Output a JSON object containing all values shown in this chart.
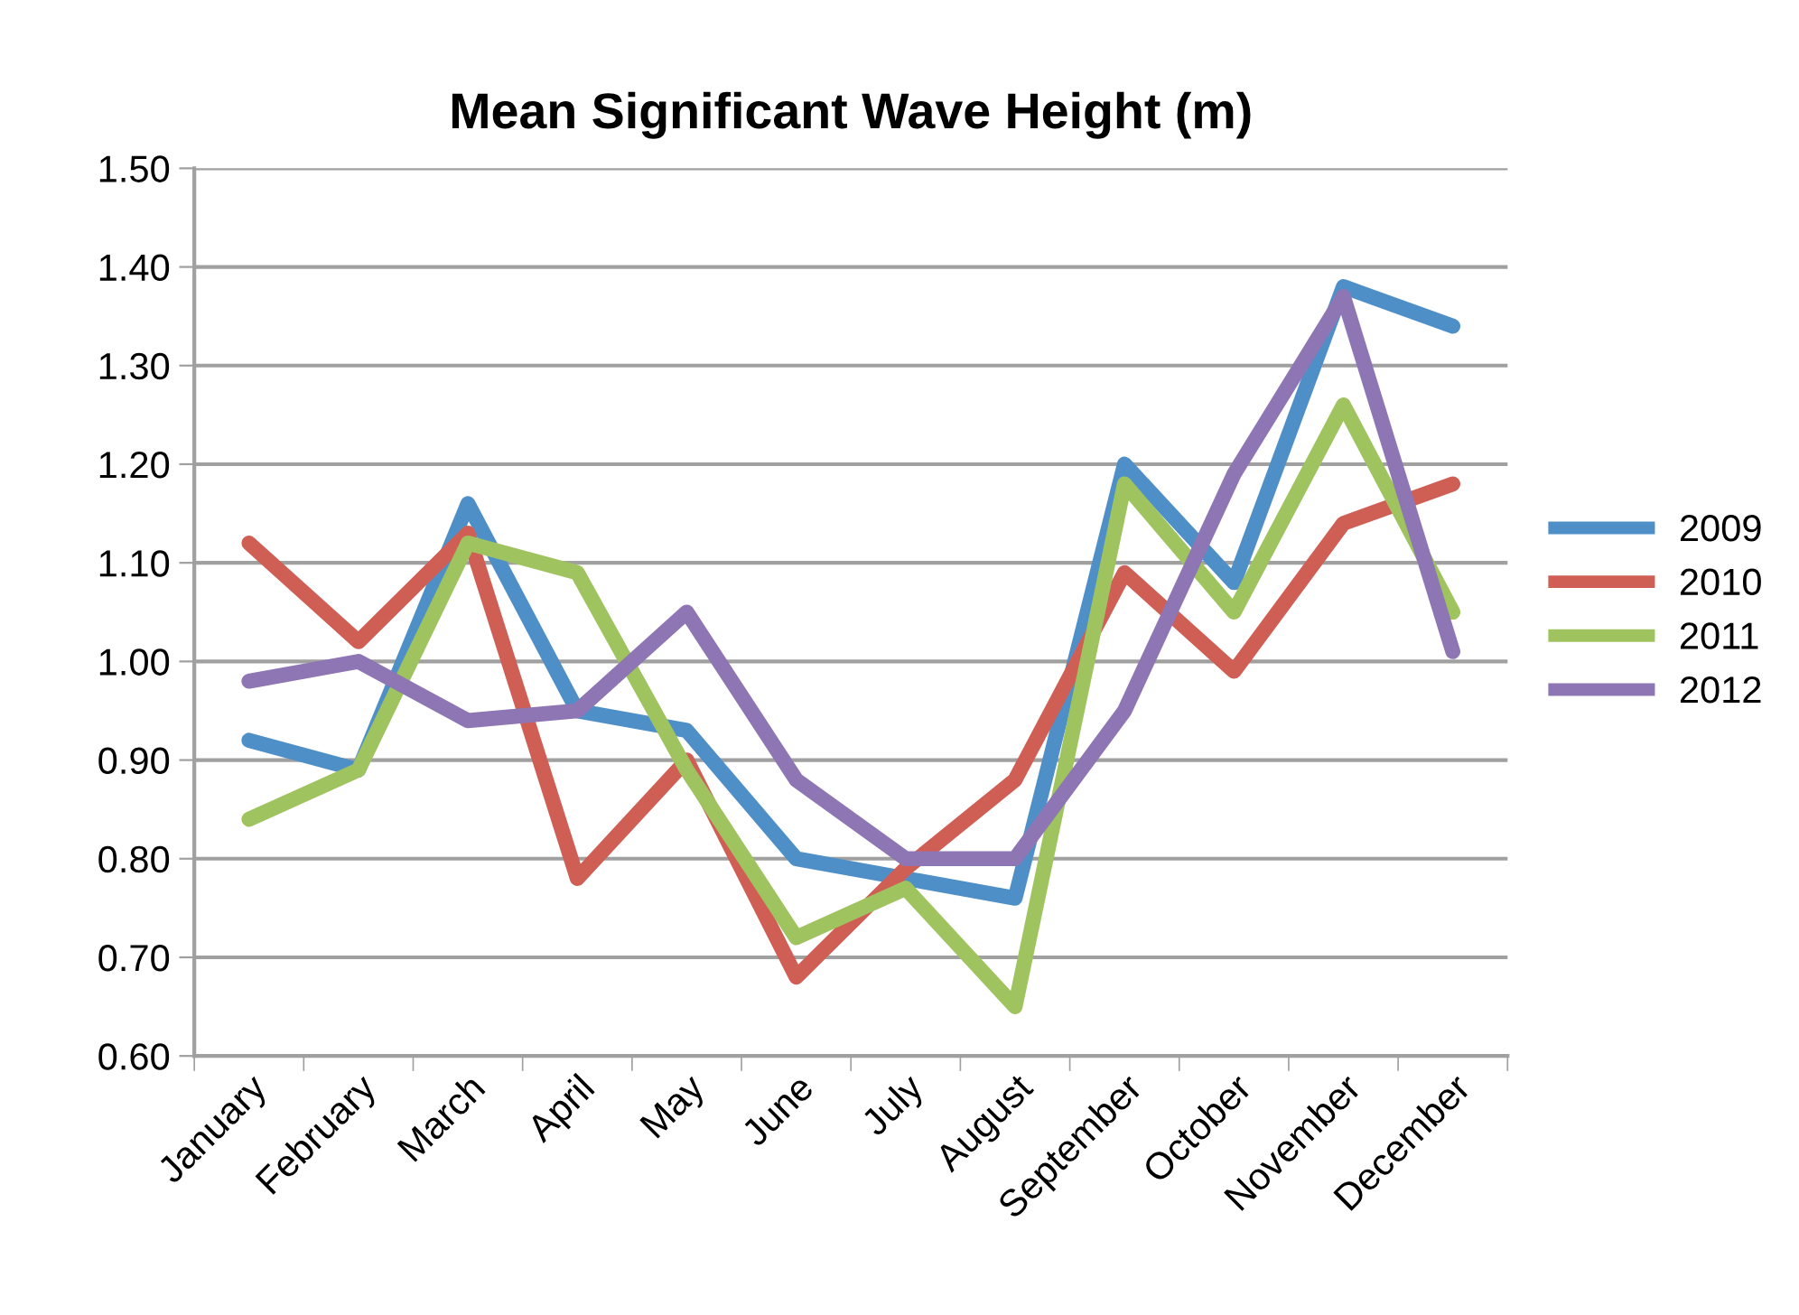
{
  "chart_data": {
    "type": "line",
    "title": "Mean Significant Wave Height (m)",
    "categories": [
      "January",
      "February",
      "March",
      "April",
      "May",
      "June",
      "July",
      "August",
      "September",
      "October",
      "November",
      "December"
    ],
    "series": [
      {
        "name": "2009",
        "color": "#4f8fc8",
        "values": [
          0.92,
          0.89,
          1.16,
          0.95,
          0.93,
          0.8,
          0.78,
          0.76,
          1.2,
          1.08,
          1.38,
          1.34
        ]
      },
      {
        "name": "2010",
        "color": "#cf5f55",
        "values": [
          1.12,
          1.02,
          1.13,
          0.78,
          0.9,
          0.68,
          0.79,
          0.88,
          1.09,
          0.99,
          1.14,
          1.18
        ]
      },
      {
        "name": "2011",
        "color": "#9fc45f",
        "values": [
          0.84,
          0.89,
          1.12,
          1.09,
          0.89,
          0.72,
          0.77,
          0.65,
          1.18,
          1.05,
          1.26,
          1.05
        ]
      },
      {
        "name": "2012",
        "color": "#8d76b3",
        "values": [
          0.98,
          1.0,
          0.94,
          0.95,
          1.05,
          0.88,
          0.8,
          0.8,
          0.95,
          1.19,
          1.37,
          1.01
        ]
      }
    ],
    "ylim": [
      0.6,
      1.5
    ],
    "yticks": [
      {
        "value": 0.6,
        "label": "0.60"
      },
      {
        "value": 0.7,
        "label": "0.70"
      },
      {
        "value": 0.8,
        "label": "0.80"
      },
      {
        "value": 0.9,
        "label": "0.90"
      },
      {
        "value": 1.0,
        "label": "1.00"
      },
      {
        "value": 1.1,
        "label": "1.10"
      },
      {
        "value": 1.2,
        "label": "1.20"
      },
      {
        "value": 1.3,
        "label": "1.30"
      },
      {
        "value": 1.4,
        "label": "1.40"
      },
      {
        "value": 1.5,
        "label": "1.50"
      }
    ],
    "grid": "y",
    "legend": "right",
    "marker": "none",
    "line_style": "solid"
  }
}
